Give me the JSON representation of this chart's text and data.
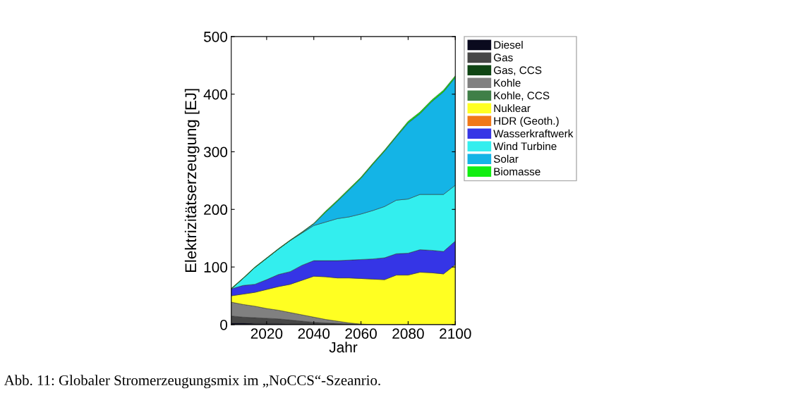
{
  "chart_data": {
    "type": "area",
    "stacked": true,
    "xlabel": "Jahr",
    "ylabel": "Elektrizitätserzeugung [EJ]",
    "x": [
      2005,
      2010,
      2015,
      2020,
      2025,
      2030,
      2035,
      2040,
      2045,
      2050,
      2055,
      2060,
      2065,
      2070,
      2075,
      2080,
      2085,
      2090,
      2095,
      2100
    ],
    "xlim": [
      2005,
      2100
    ],
    "xticks": [
      2020,
      2040,
      2060,
      2080,
      2100
    ],
    "ylim": [
      0,
      500
    ],
    "yticks": [
      0,
      100,
      200,
      300,
      400,
      500
    ],
    "grid": false,
    "legend": "top right",
    "annotations": [
      "Abb. 11: Globaler Stromerzeugungsmix im „NoCCS“-Szeanrio."
    ],
    "series": [
      {
        "name": "Diesel",
        "color": "#0a0a1e",
        "values": [
          3,
          3,
          2,
          2,
          2,
          1,
          1,
          1,
          1,
          0,
          0,
          0,
          0,
          0,
          0,
          0,
          0,
          0,
          0,
          0
        ]
      },
      {
        "name": "Gas",
        "color": "#474747",
        "values": [
          12,
          10,
          10,
          9,
          8,
          7,
          5,
          3,
          2,
          2,
          1,
          0,
          0,
          0,
          0,
          0,
          0,
          0,
          0,
          0
        ]
      },
      {
        "name": "Gas, CCS",
        "color": "#0f4514",
        "values": [
          null,
          null,
          null,
          null,
          null,
          null,
          null,
          null,
          null,
          null,
          null,
          null,
          null,
          null,
          null,
          null,
          null,
          null,
          null,
          null
        ]
      },
      {
        "name": "Kohle",
        "color": "#808080",
        "values": [
          24,
          22,
          20,
          17,
          15,
          13,
          11,
          9,
          6,
          4,
          2,
          1,
          0,
          0,
          0,
          0,
          0,
          0,
          0,
          0
        ]
      },
      {
        "name": "Kohle, CCS",
        "color": "#3f7f47",
        "values": [
          null,
          null,
          null,
          null,
          null,
          null,
          null,
          null,
          null,
          null,
          null,
          null,
          null,
          null,
          null,
          null,
          null,
          null,
          null,
          null
        ]
      },
      {
        "name": "Nuklear",
        "color": "#ffff22",
        "values": [
          11,
          18,
          24,
          33,
          41,
          49,
          60,
          71,
          74,
          75,
          78,
          79,
          79,
          78,
          86,
          86,
          91,
          90,
          88,
          104
        ]
      },
      {
        "name": "HDR (Geoth.)",
        "color": "#f07818",
        "values": [
          null,
          null,
          null,
          null,
          null,
          null,
          null,
          null,
          null,
          null,
          null,
          null,
          null,
          null,
          null,
          null,
          null,
          null,
          null,
          null
        ]
      },
      {
        "name": "Wasserkraftwerk",
        "color": "#3535e6",
        "values": [
          12,
          15,
          14,
          17,
          21,
          22,
          26,
          27,
          28,
          30,
          31,
          33,
          35,
          38,
          37,
          38,
          39,
          39,
          39,
          41
        ]
      },
      {
        "name": "Wind Turbine",
        "color": "#33eeee",
        "values": [
          0,
          12,
          29,
          37,
          44,
          54,
          56,
          61,
          67,
          73,
          75,
          79,
          84,
          89,
          93,
          94,
          96,
          97,
          99,
          97
        ]
      },
      {
        "name": "Solar",
        "color": "#14b4e6",
        "values": [
          0,
          0,
          0,
          0,
          0,
          0,
          1,
          3,
          17,
          30,
          47,
          62,
          80,
          96,
          110,
          132,
          140,
          161,
          178,
          187
        ]
      },
      {
        "name": "Biomasse",
        "color": "#11ee11",
        "values": [
          1,
          1,
          1,
          1,
          1,
          1,
          1,
          1,
          2,
          2,
          2,
          2,
          2,
          2,
          2,
          3,
          3,
          3,
          3,
          3
        ]
      }
    ]
  }
}
